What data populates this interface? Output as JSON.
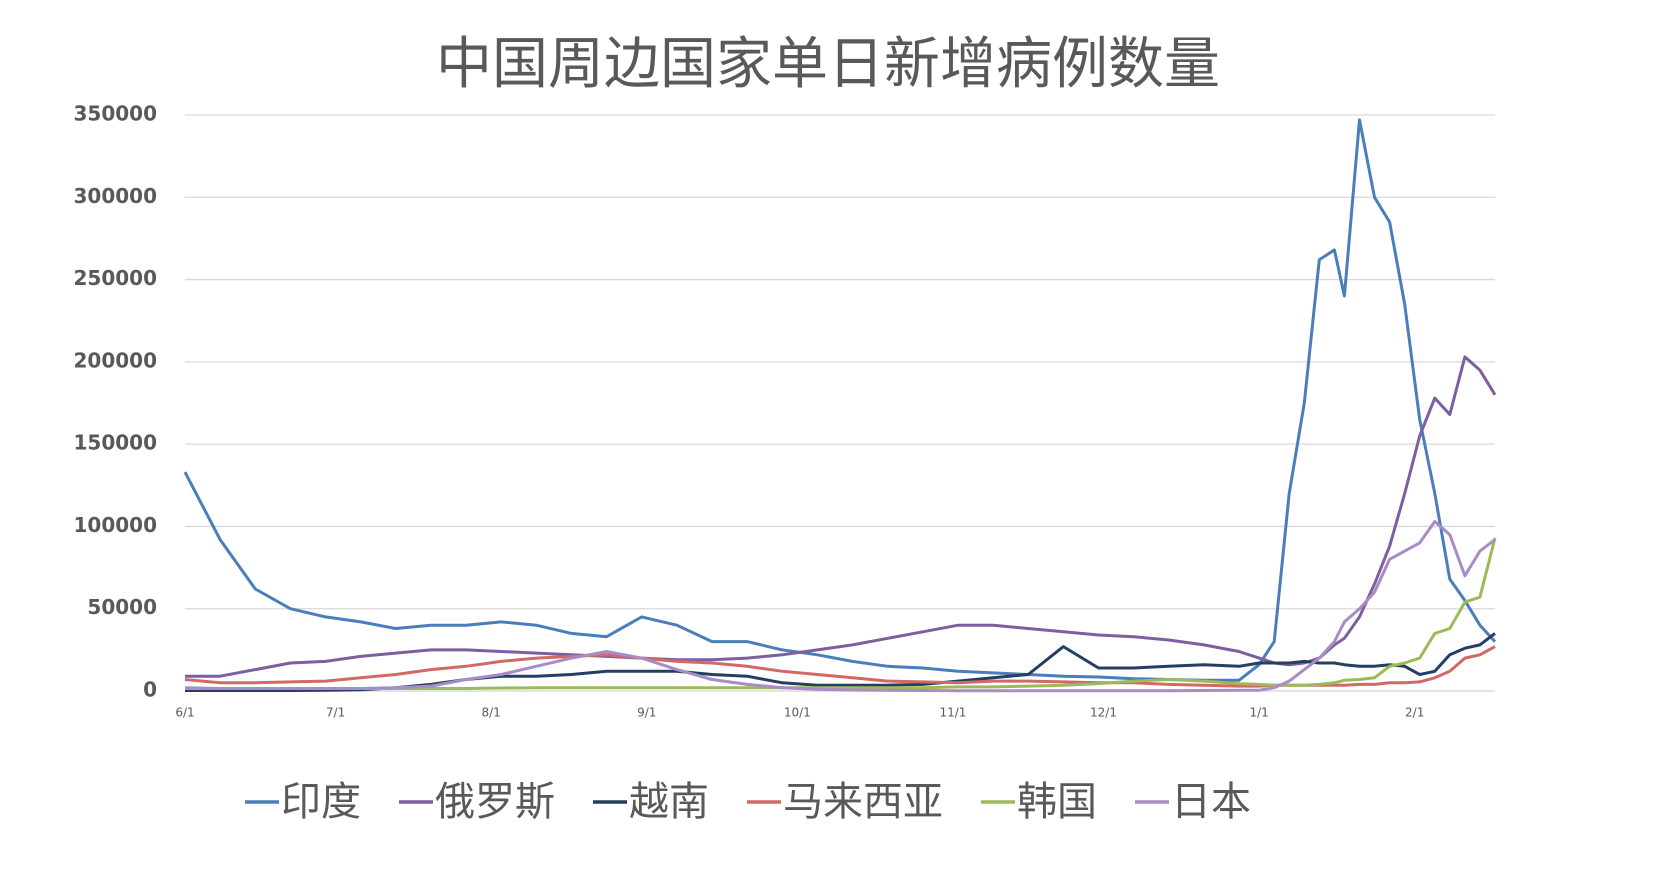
{
  "chart_data": {
    "type": "line",
    "title": "中国周边国家单日新增病例数量",
    "x": [
      "6/1",
      "6/8",
      "6/15",
      "6/22",
      "6/29",
      "7/6",
      "7/13",
      "7/20",
      "7/27",
      "8/3",
      "8/10",
      "8/17",
      "8/24",
      "8/31",
      "9/7",
      "9/14",
      "9/21",
      "9/28",
      "10/5",
      "10/12",
      "10/19",
      "10/26",
      "11/2",
      "11/9",
      "11/16",
      "11/23",
      "11/30",
      "12/7",
      "12/14",
      "12/21",
      "12/28",
      "1/1",
      "1/4",
      "1/7",
      "1/10",
      "1/13",
      "1/16",
      "1/18",
      "1/21",
      "1/24",
      "1/27",
      "1/30",
      "2/2",
      "2/5",
      "2/8",
      "2/11",
      "2/14",
      "2/17"
    ],
    "xlim": [
      "6/1",
      "2/17"
    ],
    "xticks": [
      "6/1",
      "7/1",
      "8/1",
      "9/1",
      "10/1",
      "11/1",
      "12/1",
      "1/1",
      "2/1"
    ],
    "ylim": [
      0,
      350000
    ],
    "yticks": [
      0,
      50000,
      100000,
      150000,
      200000,
      250000,
      300000,
      350000
    ],
    "grid": true,
    "legend": "bottom",
    "series": [
      {
        "name": "印度",
        "color": "#4a7ebb",
        "values": [
          133000,
          92000,
          62000,
          50000,
          45000,
          42000,
          38000,
          40000,
          40000,
          42000,
          40000,
          35000,
          33000,
          45000,
          40000,
          30000,
          30000,
          25000,
          22000,
          18000,
          15000,
          14000,
          12000,
          11000,
          10000,
          9000,
          8500,
          7500,
          7000,
          6500,
          6500,
          16000,
          30000,
          120000,
          175000,
          262000,
          268000,
          240000,
          347000,
          300000,
          285000,
          235000,
          165000,
          120000,
          68000,
          55000,
          40000,
          30000
        ]
      },
      {
        "name": "俄罗斯",
        "color": "#7d5f9f",
        "values": [
          9000,
          9000,
          13000,
          17000,
          18000,
          21000,
          23000,
          25000,
          25000,
          24000,
          23000,
          22000,
          21000,
          20000,
          19000,
          19000,
          20000,
          22000,
          25000,
          28000,
          32000,
          36000,
          40000,
          40000,
          38000,
          36000,
          34000,
          33000,
          31000,
          28000,
          24000,
          20000,
          17000,
          16000,
          17000,
          20000,
          28000,
          32000,
          45000,
          65000,
          88000,
          120000,
          155000,
          178000,
          168000,
          203000,
          195000,
          180000
        ]
      },
      {
        "name": "越南",
        "color": "#243f60",
        "values": [
          300,
          300,
          300,
          300,
          500,
          800,
          2000,
          4000,
          7000,
          9000,
          9000,
          10000,
          12000,
          12000,
          12000,
          10000,
          9000,
          5000,
          3500,
          3500,
          3500,
          4000,
          6000,
          8000,
          10000,
          27000,
          14000,
          14000,
          15000,
          16000,
          15000,
          17000,
          17000,
          17000,
          18000,
          17000,
          17000,
          16000,
          15000,
          15000,
          16000,
          15000,
          10000,
          12000,
          22000,
          26000,
          28000,
          35000
        ]
      },
      {
        "name": "马来西亚",
        "color": "#d16a67",
        "values": [
          7000,
          5000,
          5000,
          5500,
          6000,
          8000,
          10000,
          13000,
          15000,
          18000,
          20000,
          21000,
          22000,
          20000,
          18000,
          17000,
          15000,
          12000,
          10000,
          8000,
          6000,
          5500,
          5000,
          6000,
          6000,
          5500,
          5000,
          5000,
          4000,
          3500,
          3000,
          3000,
          3500,
          3500,
          3500,
          3500,
          3500,
          3500,
          4000,
          4000,
          5000,
          5000,
          5500,
          8000,
          12000,
          20000,
          22000,
          27000
        ]
      },
      {
        "name": "韩国",
        "color": "#9bbb59",
        "values": [
          1500,
          1500,
          1500,
          1500,
          1500,
          1500,
          1500,
          1500,
          1500,
          1800,
          2000,
          2000,
          2000,
          2000,
          2000,
          2000,
          2000,
          2000,
          2000,
          2000,
          2000,
          2000,
          2500,
          2500,
          3000,
          3500,
          4500,
          6000,
          7000,
          6000,
          4500,
          4000,
          3500,
          3500,
          3500,
          4000,
          5000,
          6500,
          7000,
          8000,
          15000,
          17000,
          20000,
          35000,
          38000,
          54000,
          57000,
          93000
        ]
      },
      {
        "name": "日本",
        "color": "#a88bc7",
        "values": [
          2000,
          1500,
          1500,
          1500,
          1500,
          1500,
          2000,
          3000,
          7000,
          10000,
          15000,
          20000,
          24000,
          20000,
          13000,
          7000,
          4000,
          2000,
          1000,
          600,
          400,
          300,
          200,
          200,
          150,
          150,
          150,
          150,
          200,
          300,
          400,
          500,
          2000,
          6000,
          13000,
          20000,
          30000,
          42000,
          50000,
          60000,
          80000,
          85000,
          90000,
          103000,
          95000,
          70000,
          85000,
          92000
        ]
      }
    ]
  }
}
